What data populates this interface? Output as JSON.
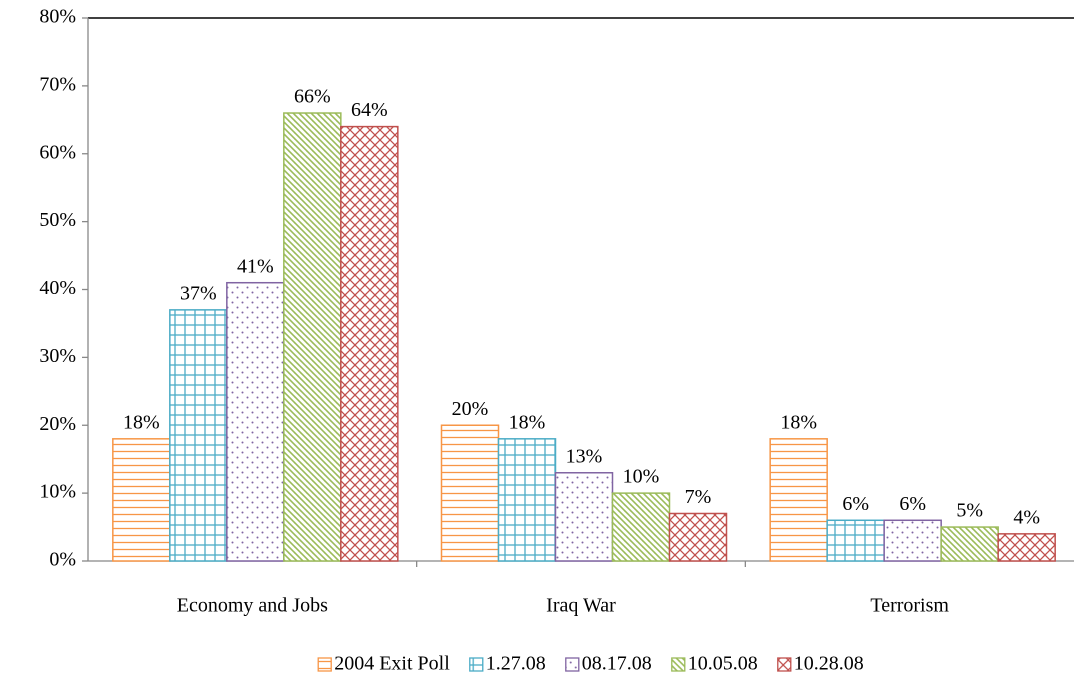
{
  "chart_data": {
    "type": "bar",
    "categories": [
      "Economy and Jobs",
      "Iraq War",
      "Terrorism"
    ],
    "series": [
      {
        "name": "2004 Exit Poll",
        "color": "#f79646",
        "values": [
          18,
          20,
          18
        ],
        "value_labels": [
          "18%",
          "20%",
          "18%"
        ]
      },
      {
        "name": "1.27.08",
        "color": "#4bacc6",
        "values": [
          37,
          18,
          6
        ],
        "value_labels": [
          "37%",
          "18%",
          "6%"
        ]
      },
      {
        "name": "08.17.08",
        "color": "#8064a2",
        "values": [
          41,
          13,
          6
        ],
        "value_labels": [
          "41%",
          "13%",
          "6%"
        ]
      },
      {
        "name": "10.05.08",
        "color": "#9bbb59",
        "values": [
          66,
          10,
          5
        ],
        "value_labels": [
          "66%",
          "10%",
          "5%"
        ]
      },
      {
        "name": "10.28.08",
        "color": "#c0504d",
        "values": [
          64,
          7,
          4
        ],
        "value_labels": [
          "64%",
          "7%",
          "4%"
        ]
      }
    ],
    "ylim": [
      0,
      80
    ],
    "yticks": [
      {
        "value": 0,
        "label": "0%"
      },
      {
        "value": 10,
        "label": "10%"
      },
      {
        "value": 20,
        "label": "20%"
      },
      {
        "value": 30,
        "label": "30%"
      },
      {
        "value": 40,
        "label": "40%"
      },
      {
        "value": 50,
        "label": "50%"
      },
      {
        "value": 60,
        "label": "60%"
      },
      {
        "value": 70,
        "label": "70%"
      },
      {
        "value": 80,
        "label": "80%"
      }
    ],
    "legend": "bottom"
  }
}
